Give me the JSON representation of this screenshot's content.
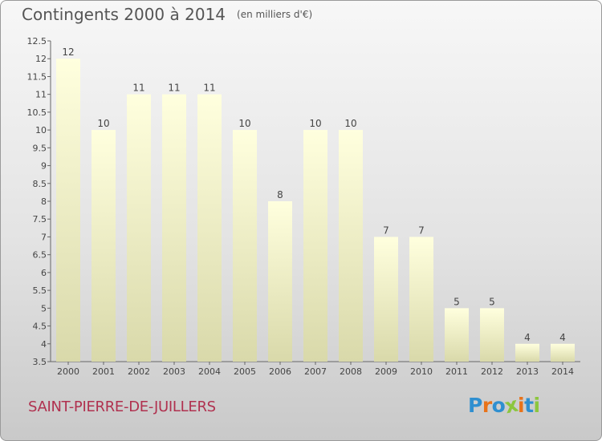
{
  "header": {
    "title": "Contingents 2000 à 2014",
    "subtitle": "(en milliers d'€)"
  },
  "footer": {
    "town": "SAINT-PIERRE-DE-JUILLERS",
    "logo": [
      "P",
      "r",
      "o",
      "x",
      "i",
      "t",
      "i"
    ]
  },
  "colors": {
    "bar_top": "#ffffde",
    "bar_bottom": "#d9d9aa",
    "town_text": "#b0314f",
    "logo": [
      "#2f8fd0",
      "#e8731a",
      "#2f8fd0",
      "#8cc63e",
      "#e8731a",
      "#2f8fd0",
      "#8cc63e"
    ]
  },
  "chart_data": {
    "type": "bar",
    "title": "Contingents 2000 à 2014",
    "subtitle": "(en milliers d'€)",
    "categories": [
      "2000",
      "2001",
      "2002",
      "2003",
      "2004",
      "2005",
      "2006",
      "2007",
      "2008",
      "2009",
      "2010",
      "2011",
      "2012",
      "2013",
      "2014"
    ],
    "values": [
      12,
      10,
      11,
      11,
      11,
      10,
      8,
      10,
      10,
      7,
      7,
      5,
      5,
      4,
      4
    ],
    "data_labels": [
      "12",
      "10",
      "11",
      "11",
      "11",
      "10",
      "8",
      "10",
      "10",
      "7",
      "7",
      "5",
      "5",
      "4",
      "4"
    ],
    "ylim": [
      3.5,
      12.5
    ],
    "yticks": [
      3.5,
      4,
      4.5,
      5,
      5.5,
      6,
      6.5,
      7,
      7.5,
      8,
      8.5,
      9,
      9.5,
      10,
      10.5,
      11,
      11.5,
      12,
      12.5
    ],
    "ytick_labels": [
      "3.5",
      "4",
      "4.5",
      "5",
      "5.5",
      "6",
      "6.5",
      "7",
      "7.5",
      "8",
      "8.5",
      "9",
      "9.5",
      "10",
      "10.5",
      "11",
      "11.5",
      "12",
      "12.5"
    ],
    "grid": false,
    "legend": "none"
  }
}
